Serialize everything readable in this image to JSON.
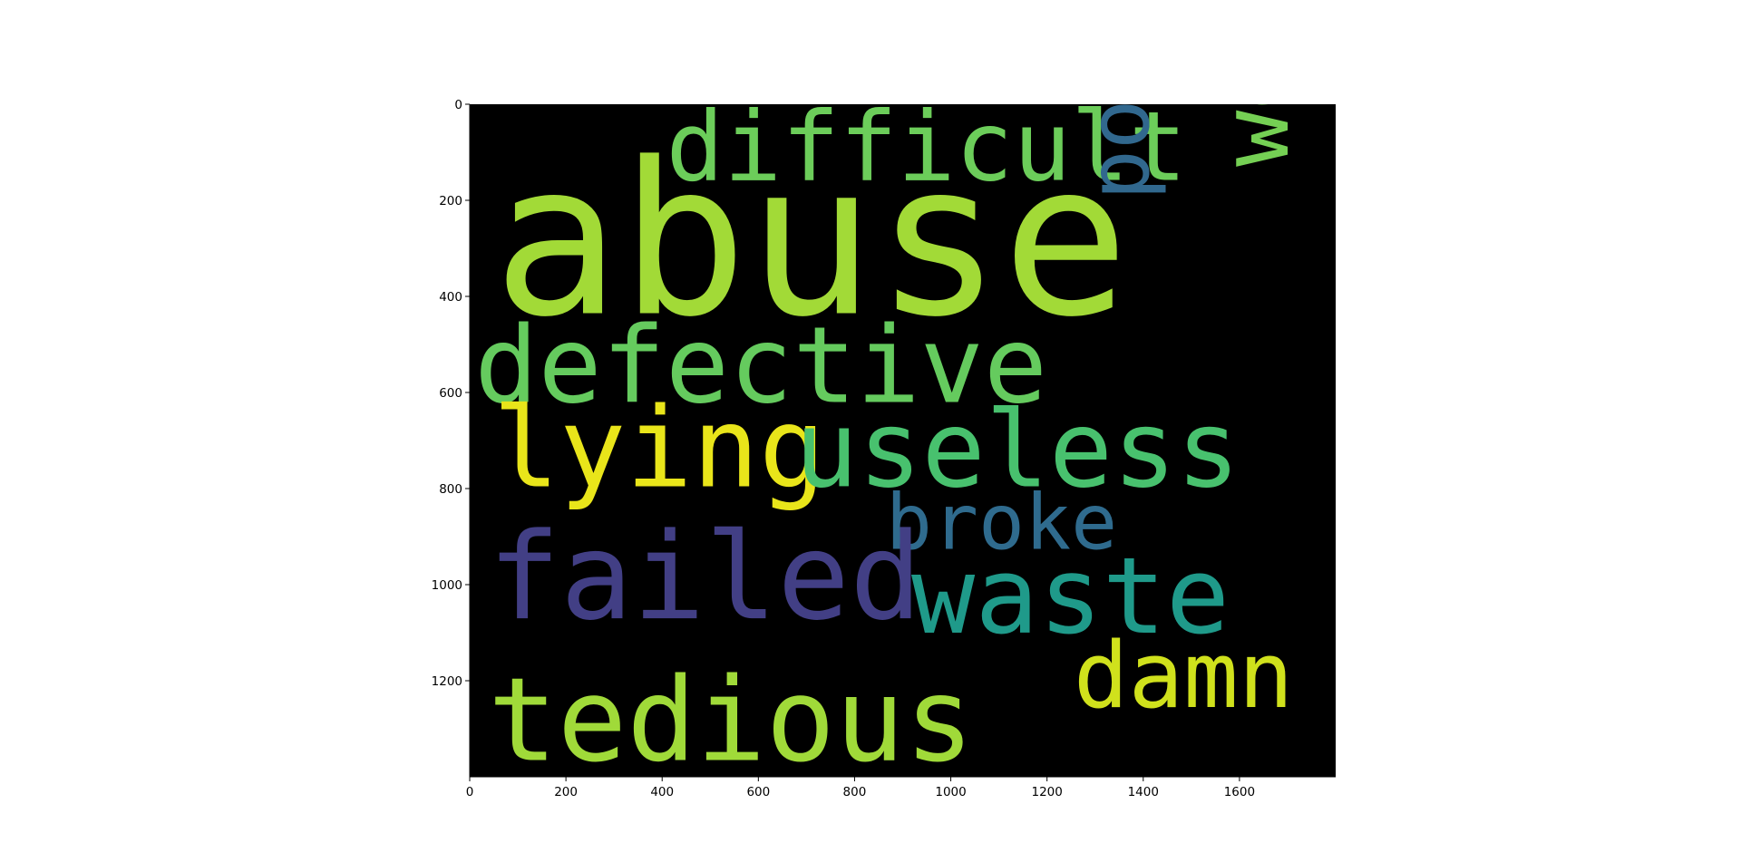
{
  "chart_data": {
    "type": "wordcloud",
    "title": "",
    "xlabel": "",
    "ylabel": "",
    "background_color": "#000000",
    "xlim": [
      0,
      1800
    ],
    "ylim": [
      1400,
      0
    ],
    "x_ticks": [
      0,
      200,
      400,
      600,
      800,
      1000,
      1200,
      1400,
      1600
    ],
    "y_ticks": [
      0,
      200,
      400,
      600,
      800,
      1000,
      1200
    ],
    "grid": false,
    "words": [
      {
        "text": "abuse",
        "x": 48,
        "y": 435,
        "size": 440,
        "rotation": 0,
        "color": "#a2da37"
      },
      {
        "text": "difficult",
        "x": 408,
        "y": 158,
        "size": 200,
        "rotation": 0,
        "color": "#6ccd5a"
      },
      {
        "text": "defective",
        "x": 10,
        "y": 620,
        "size": 220,
        "rotation": 0,
        "color": "#65cb5e"
      },
      {
        "text": "poor",
        "x": 1410,
        "y": 200,
        "size": 175,
        "rotation": 90,
        "color": "#31688e"
      },
      {
        "text": "weak",
        "x": 1700,
        "y": 130,
        "size": 195,
        "rotation": 90,
        "color": "#75d054"
      },
      {
        "text": "lying",
        "x": 48,
        "y": 795,
        "size": 230,
        "rotation": 0,
        "color": "#e9e51a"
      },
      {
        "text": "useless",
        "x": 675,
        "y": 795,
        "size": 220,
        "rotation": 0,
        "color": "#48c16e"
      },
      {
        "text": "broke",
        "x": 865,
        "y": 925,
        "size": 160,
        "rotation": 0,
        "color": "#2f6b8e"
      },
      {
        "text": "failed",
        "x": 38,
        "y": 1070,
        "size": 250,
        "rotation": 0,
        "color": "#423f85"
      },
      {
        "text": "waste",
        "x": 918,
        "y": 1100,
        "size": 220,
        "rotation": 0,
        "color": "#1f9a8a"
      },
      {
        "text": "damn",
        "x": 1255,
        "y": 1255,
        "size": 190,
        "rotation": 0,
        "color": "#d0e11c"
      },
      {
        "text": "tedious",
        "x": 38,
        "y": 1365,
        "size": 240,
        "rotation": 0,
        "color": "#a0da39"
      }
    ]
  }
}
